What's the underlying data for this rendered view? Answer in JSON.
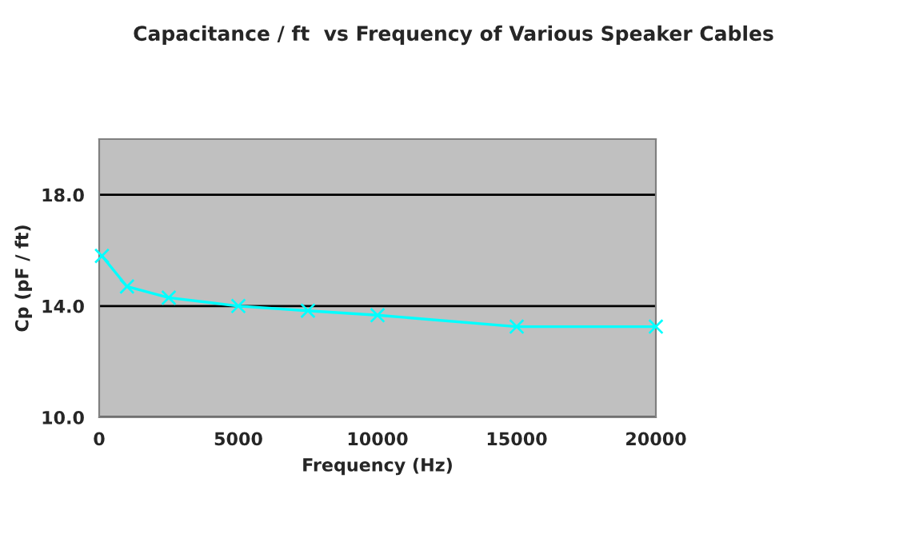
{
  "chart_data": {
    "type": "line",
    "title": "Capacitance / ft  vs Frequency of Various Speaker Cables",
    "xlabel": "Frequency (Hz)",
    "ylabel": "Cp (pF / ft)",
    "x": [
      100,
      1000,
      2500,
      5000,
      7500,
      10000,
      15000,
      20000
    ],
    "series": [
      {
        "color": "#00ffff",
        "values": [
          15.8,
          14.7,
          14.3,
          14.0,
          13.83,
          13.67,
          13.26,
          13.26
        ]
      }
    ],
    "xlim": [
      0,
      20000
    ],
    "xticks": [
      0,
      5000,
      10000,
      15000,
      20000
    ],
    "ylim": [
      10,
      20
    ],
    "yticks": [
      {
        "value": 10,
        "label": "10.0"
      },
      {
        "value": 14,
        "label": "14.0"
      },
      {
        "value": 18,
        "label": "18.0"
      }
    ],
    "grid": "y",
    "marker": "cross",
    "line_style": "solid"
  }
}
